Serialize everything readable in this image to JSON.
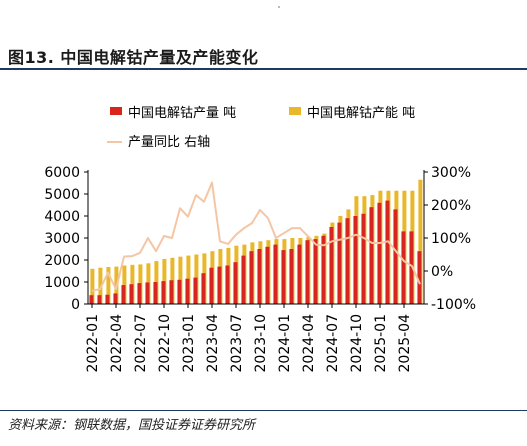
{
  "figure": {
    "title": "图13. 中国电解钴产量及产能变化",
    "source": "资料来源：钢联数据，国投证券证券研究所"
  },
  "colors": {
    "production": "#d7261e",
    "capacity": "#e8b82a",
    "yoy": "#f5c6a5",
    "rule": "#1f3864"
  },
  "chart_data": {
    "type": "bar",
    "x": [
      "2022-01",
      "2022-02",
      "2022-03",
      "2022-04",
      "2022-05",
      "2022-06",
      "2022-07",
      "2022-08",
      "2022-09",
      "2022-10",
      "2022-11",
      "2022-12",
      "2023-01",
      "2023-02",
      "2023-03",
      "2023-04",
      "2023-05",
      "2023-06",
      "2023-07",
      "2023-08",
      "2023-09",
      "2023-10",
      "2023-11",
      "2023-12",
      "2024-01",
      "2024-02",
      "2024-03",
      "2024-04",
      "2024-05",
      "2024-06",
      "2024-07",
      "2024-08",
      "2024-09",
      "2024-10",
      "2024-11",
      "2024-12",
      "2025-01",
      "2025-02",
      "2025-03",
      "2025-04",
      "2025-05",
      "2025-06"
    ],
    "x_tick_labels": [
      "2022-01",
      "2022-04",
      "2022-07",
      "2022-10",
      "2023-01",
      "2023-04",
      "2023-07",
      "2023-10",
      "2024-01",
      "2024-04",
      "2024-07",
      "2024-10",
      "2025-01",
      "2025-04"
    ],
    "series": [
      {
        "name": "中国电解钴产量  吨",
        "kind": "bar",
        "axis": "left",
        "values": [
          400,
          400,
          420,
          480,
          860,
          900,
          950,
          980,
          1000,
          1040,
          1080,
          1100,
          1150,
          1200,
          1400,
          1650,
          1700,
          1750,
          1900,
          2200,
          2400,
          2500,
          2600,
          2700,
          2450,
          2500,
          2700,
          2900,
          2950,
          3100,
          3500,
          3700,
          3900,
          4000,
          4100,
          4400,
          4600,
          4700,
          4300,
          3300,
          3300,
          2400
        ]
      },
      {
        "name": "中国电解钴产能  吨",
        "kind": "bar",
        "axis": "left",
        "values": [
          1600,
          1650,
          1680,
          1700,
          1750,
          1780,
          1800,
          1850,
          1950,
          2050,
          2100,
          2150,
          2200,
          2250,
          2300,
          2400,
          2500,
          2550,
          2650,
          2700,
          2800,
          2850,
          2900,
          2950,
          2950,
          3000,
          3000,
          3050,
          3100,
          3200,
          3700,
          4000,
          4300,
          4900,
          4900,
          4950,
          5150,
          5150,
          5150,
          5150,
          5150,
          5650
        ]
      },
      {
        "name": "产量同比  右轴",
        "kind": "line",
        "axis": "right",
        "values": [
          -60,
          -55,
          -5,
          -55,
          44,
          45,
          55,
          100,
          60,
          106,
          100,
          190,
          165,
          230,
          210,
          268,
          90,
          82,
          110,
          130,
          145,
          185,
          160,
          100,
          115,
          130,
          130,
          105,
          80,
          78,
          90,
          95,
          100,
          110,
          100,
          85,
          85,
          90,
          60,
          30,
          15,
          -40
        ]
      }
    ],
    "y_left": {
      "min": 0,
      "max": 6000,
      "ticks": [
        "0",
        "1000",
        "2000",
        "3000",
        "4000",
        "5000",
        "6000"
      ]
    },
    "y_right": {
      "min": -100,
      "max": 300,
      "ticks": [
        "-100%",
        "0%",
        "100%",
        "200%",
        "300%"
      ]
    },
    "legend_position": "top-left",
    "grid": false
  }
}
